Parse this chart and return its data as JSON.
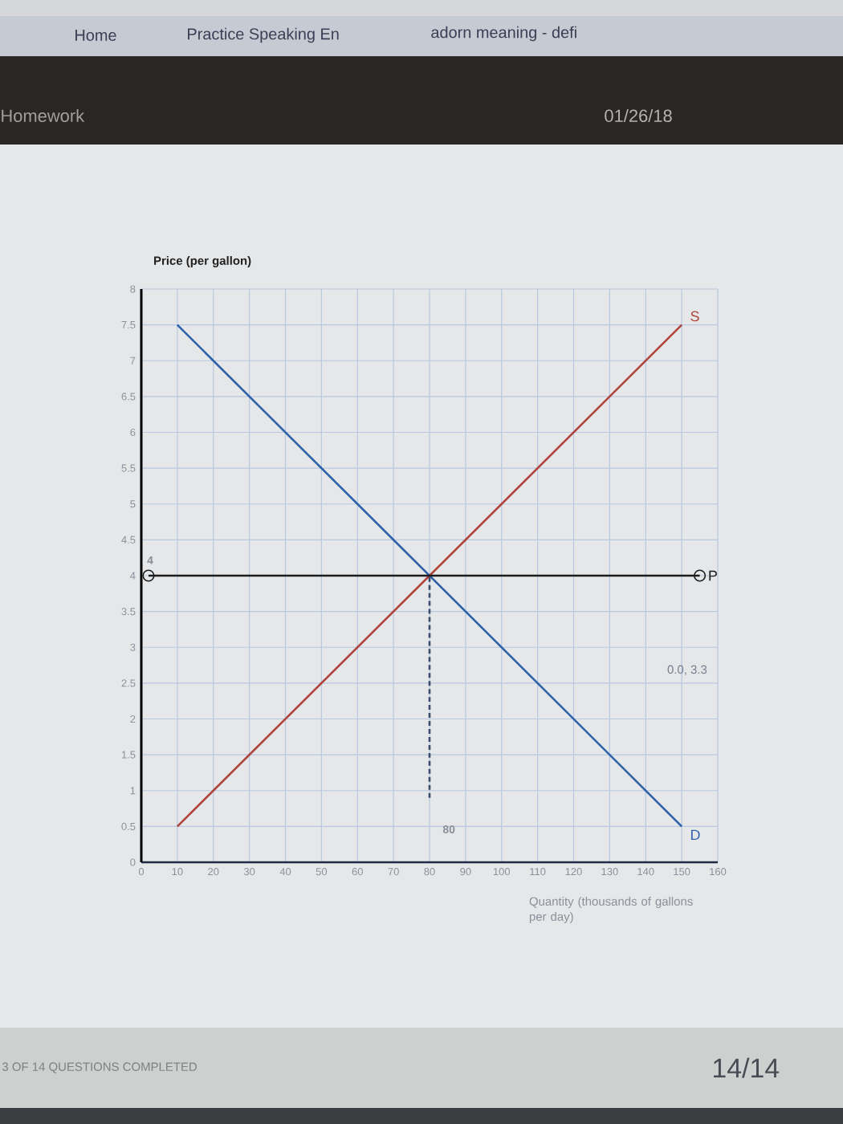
{
  "chart_data": {
    "type": "line",
    "ylabel": "Price (per gallon)",
    "xlabel": "Quantity (thousands of gallons per day)",
    "xlim": [
      0,
      160
    ],
    "ylim": [
      0,
      8
    ],
    "xticks": [
      0,
      10,
      20,
      30,
      40,
      50,
      60,
      70,
      80,
      90,
      100,
      110,
      120,
      130,
      140,
      150,
      160
    ],
    "yticks": [
      0,
      0.5,
      1,
      1.5,
      2,
      2.5,
      3,
      3.5,
      4,
      4.5,
      5,
      5.5,
      6,
      6.5,
      7,
      7.5,
      8
    ],
    "grid": true,
    "legend": false,
    "series": [
      {
        "name": "D",
        "color": "#2e62a8",
        "x": [
          10,
          150
        ],
        "values": [
          7.5,
          0.5
        ]
      },
      {
        "name": "S",
        "color": "#b0443c",
        "x": [
          10,
          150
        ],
        "values": [
          0.5,
          7.5
        ]
      },
      {
        "name": "P",
        "color": "#1c1c1c",
        "x": [
          2,
          155
        ],
        "values": [
          4,
          4
        ],
        "marker": "circle"
      },
      {
        "color": "#3a4a6a",
        "x": [
          80,
          80
        ],
        "values": [
          0.9,
          4
        ],
        "line_style": "dashed"
      }
    ],
    "annotations": [
      {
        "text": "4",
        "x": 2,
        "y": 4
      },
      {
        "text": "80",
        "x": 80,
        "y": 0.9
      },
      "0.0, 3.3",
      "Home",
      "Practice Speaking En",
      "adorn meaning - defi",
      "Homework",
      "01/26/18",
      "3 OF 14 QUESTIONS COMPLETED",
      "14/14"
    ]
  }
}
